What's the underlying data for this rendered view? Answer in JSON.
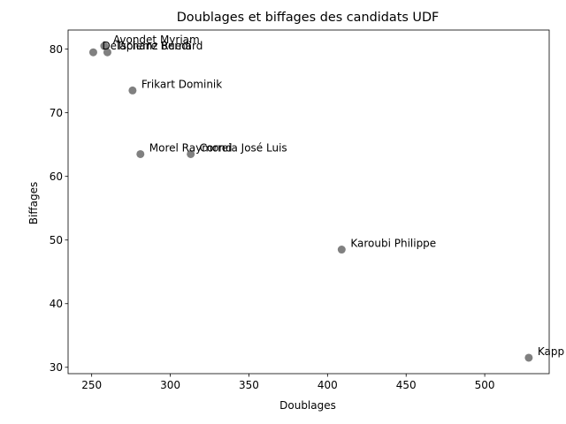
{
  "chart_data": {
    "type": "scatter",
    "title": "Doublages et biffages des candidats UDF",
    "xlabel": "Doublages",
    "ylabel": "Biffages",
    "xlim": [
      235,
      541
    ],
    "ylim": [
      29,
      83
    ],
    "xticks": [
      250,
      300,
      350,
      400,
      450,
      500
    ],
    "yticks": [
      30,
      40,
      50,
      60,
      70,
      80
    ],
    "grid": false,
    "marker_color": "#808080",
    "points": [
      {
        "label": "Avondet Myriam",
        "x": 258,
        "y": 80.5
      },
      {
        "label": "Tschanz Ruedi",
        "x": 260,
        "y": 79.5
      },
      {
        "label": "Delapierre Bernard",
        "x": 251,
        "y": 79.5
      },
      {
        "label": "Frikart Dominik",
        "x": 276,
        "y": 73.5
      },
      {
        "label": "Morel Raymond",
        "x": 281,
        "y": 63.5
      },
      {
        "label": "Correia José Luis",
        "x": 313,
        "y": 63.5
      },
      {
        "label": "Karoubi Philippe",
        "x": 409,
        "y": 48.5
      },
      {
        "label": "Kapp",
        "x": 528,
        "y": 31.5
      }
    ]
  }
}
